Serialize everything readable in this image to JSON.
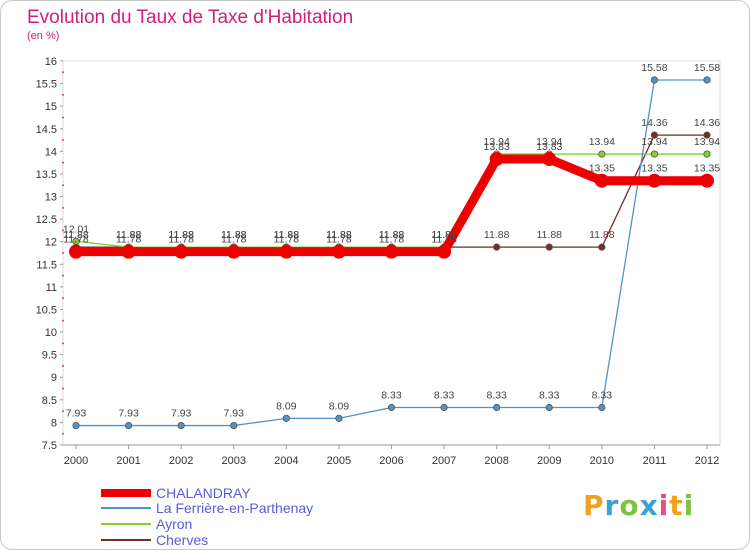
{
  "chart_data": {
    "type": "line",
    "title": "Evolution du Taux de Taxe d'Habitation",
    "ylabel": "(en %)",
    "xlabel": "",
    "x": [
      "2000",
      "2001",
      "2002",
      "2003",
      "2004",
      "2005",
      "2006",
      "2007",
      "2008",
      "2009",
      "2010",
      "2011",
      "2012"
    ],
    "ylim": [
      7.5,
      16
    ],
    "yticks": [
      "7.5",
      "8",
      "8.5",
      "9",
      "9.5",
      "10",
      "10.5",
      "11",
      "11.5",
      "12",
      "12.5",
      "13",
      "13.5",
      "14",
      "14.5",
      "15",
      "15.5",
      "16"
    ],
    "series": [
      {
        "name": "CHALANDRAY",
        "color": "#ee0000",
        "values": [
          11.78,
          11.78,
          11.78,
          11.78,
          11.78,
          11.78,
          11.78,
          11.78,
          13.83,
          13.83,
          13.35,
          13.35,
          13.35
        ],
        "labels": [
          "11.78",
          "11.78",
          "11.78",
          "11.78",
          "11.78",
          "11.78",
          "11.78",
          "11.78",
          "13.83",
          "13.83",
          "13.35",
          "13.35",
          "13.35"
        ]
      },
      {
        "name": "La Ferrière-en-Parthenay",
        "color": "#4f93c8",
        "values": [
          7.93,
          7.93,
          7.93,
          7.93,
          8.09,
          8.09,
          8.33,
          8.33,
          8.33,
          8.33,
          8.33,
          15.58,
          15.58
        ],
        "labels": [
          "7.93",
          "7.93",
          "7.93",
          "7.93",
          "8.09",
          "8.09",
          "8.33",
          "8.33",
          "8.33",
          "8.33",
          "8.33",
          "15.58",
          "15.58"
        ]
      },
      {
        "name": "Ayron",
        "color": "#7fd12c",
        "values": [
          12.01,
          11.88,
          11.88,
          11.88,
          11.88,
          11.88,
          11.88,
          11.88,
          13.94,
          13.94,
          13.94,
          13.94,
          13.94
        ],
        "labels": [
          "12.01",
          "11.88",
          "11.88",
          "11.88",
          "11.88",
          "11.88",
          "11.88",
          "11.88",
          "13.94",
          "13.94",
          "13.94",
          "13.94",
          "13.94"
        ]
      },
      {
        "name": "Cherves",
        "color": "#7b2a2a",
        "values": [
          11.88,
          11.88,
          11.88,
          11.88,
          11.88,
          11.88,
          11.88,
          11.88,
          11.88,
          11.88,
          11.88,
          14.36,
          14.36
        ],
        "labels": [
          "11.88",
          "11.88",
          "11.88",
          "11.88",
          "11.88",
          "11.88",
          "11.88",
          "11.88",
          "11.88",
          "11.88",
          "11.88",
          "14.36",
          "14.36"
        ]
      }
    ]
  },
  "legend": [
    {
      "name": "CHALANDRAY",
      "color": "#ee0000"
    },
    {
      "name": "La Ferrière-en-Parthenay",
      "color": "#4f93c8"
    },
    {
      "name": "Ayron",
      "color": "#7fd12c"
    },
    {
      "name": "Cherves",
      "color": "#7b2a2a"
    }
  ],
  "logo": {
    "text": "Proxiti"
  }
}
